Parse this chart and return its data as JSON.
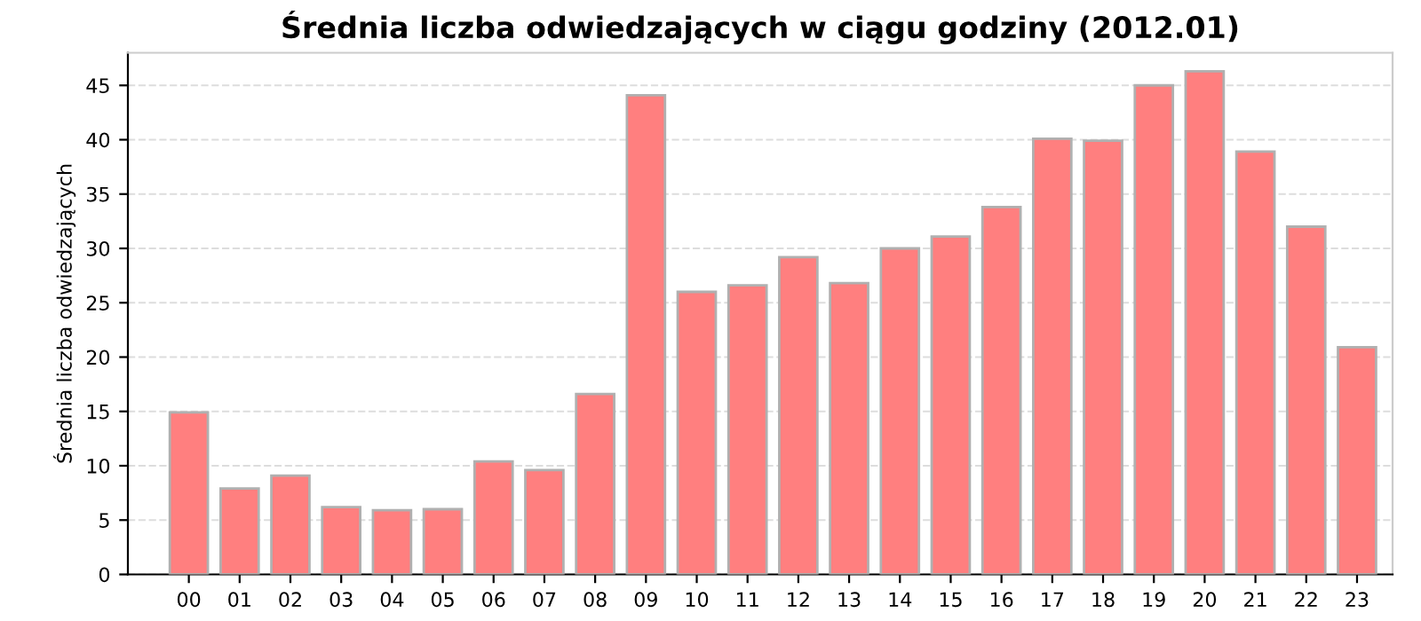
{
  "chart_data": {
    "type": "bar",
    "title": "Średnia liczba odwiedzających w ciągu godziny (2012.01)",
    "ylabel": "Średnia liczba odwiedzających",
    "categories": [
      "00",
      "01",
      "02",
      "03",
      "04",
      "05",
      "06",
      "07",
      "08",
      "09",
      "10",
      "11",
      "12",
      "13",
      "14",
      "15",
      "16",
      "17",
      "18",
      "19",
      "20",
      "21",
      "22",
      "23"
    ],
    "values": [
      14.9,
      7.9,
      9.1,
      6.2,
      5.9,
      6.0,
      10.4,
      9.6,
      16.6,
      44.1,
      26.0,
      26.6,
      29.2,
      26.8,
      30.0,
      31.1,
      33.8,
      40.1,
      39.9,
      45.0,
      46.3,
      38.9,
      32.0,
      20.9
    ],
    "color": "#ff7f7f",
    "ylim": [
      0,
      48
    ],
    "yticks": [
      0,
      5,
      10,
      15,
      20,
      25,
      30,
      35,
      40,
      45
    ],
    "grid": "y"
  }
}
